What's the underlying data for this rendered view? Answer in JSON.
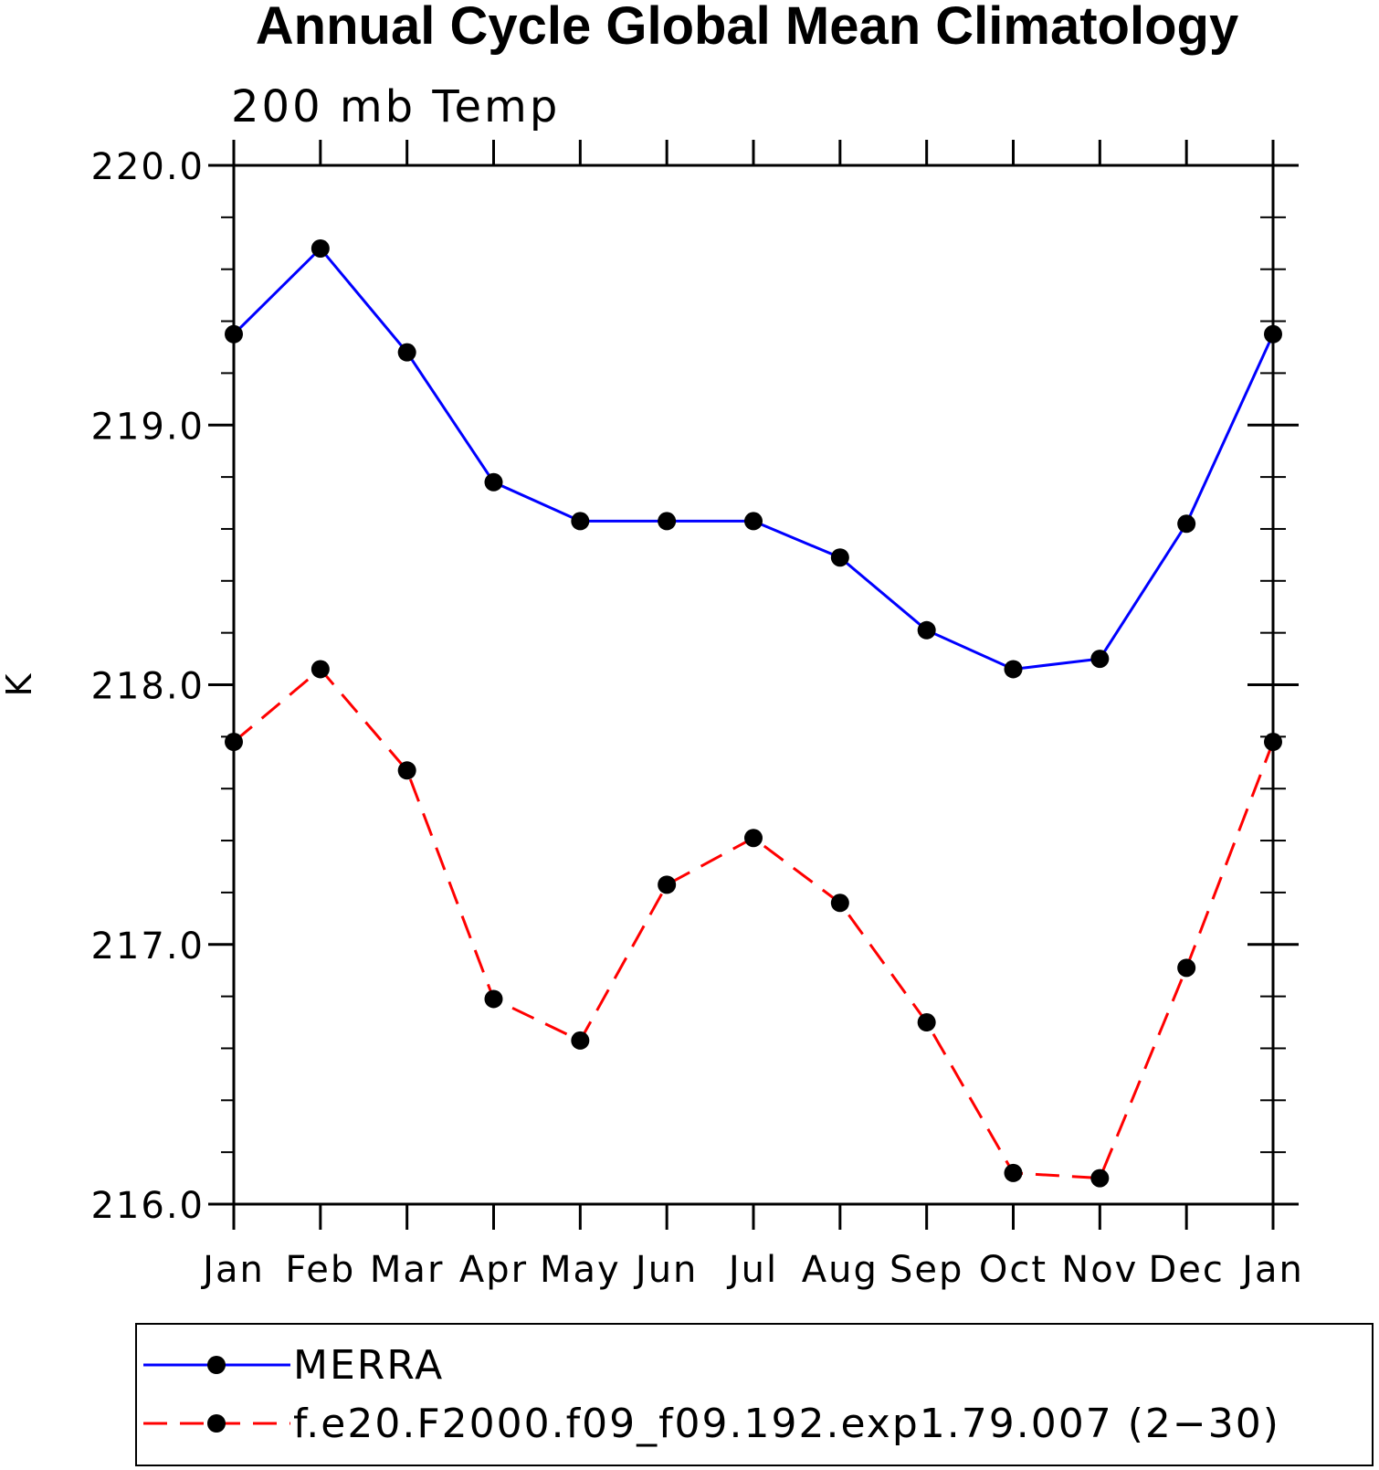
{
  "chart_data": {
    "type": "line",
    "title": "Annual Cycle Global Mean Climatology",
    "subtitle": "200 mb Temp",
    "ylabel": "K",
    "xlabel": "",
    "categories": [
      "Jan",
      "Feb",
      "Mar",
      "Apr",
      "May",
      "Jun",
      "Jul",
      "Aug",
      "Sep",
      "Oct",
      "Nov",
      "Dec",
      "Jan"
    ],
    "ylim": [
      216.0,
      220.0
    ],
    "yticks": [
      "216.0",
      "217.0",
      "218.0",
      "219.0",
      "220.0"
    ],
    "grid": false,
    "legend_position": "bottom",
    "series": [
      {
        "name": "MERRA",
        "color": "#0000ff",
        "line_style": "solid",
        "marker": "filled-circle",
        "values": [
          219.35,
          219.68,
          219.28,
          218.78,
          218.63,
          218.63,
          218.63,
          218.49,
          218.21,
          218.06,
          218.1,
          218.62,
          219.35
        ]
      },
      {
        "name": "f.e20.F2000.f09_f09.192.exp1.79.007 (2−30)",
        "color": "#ff0000",
        "line_style": "dashed",
        "marker": "filled-circle",
        "values": [
          217.78,
          218.06,
          217.67,
          216.79,
          216.63,
          217.23,
          217.41,
          217.16,
          216.7,
          216.12,
          216.1,
          216.91,
          217.78
        ]
      }
    ]
  }
}
